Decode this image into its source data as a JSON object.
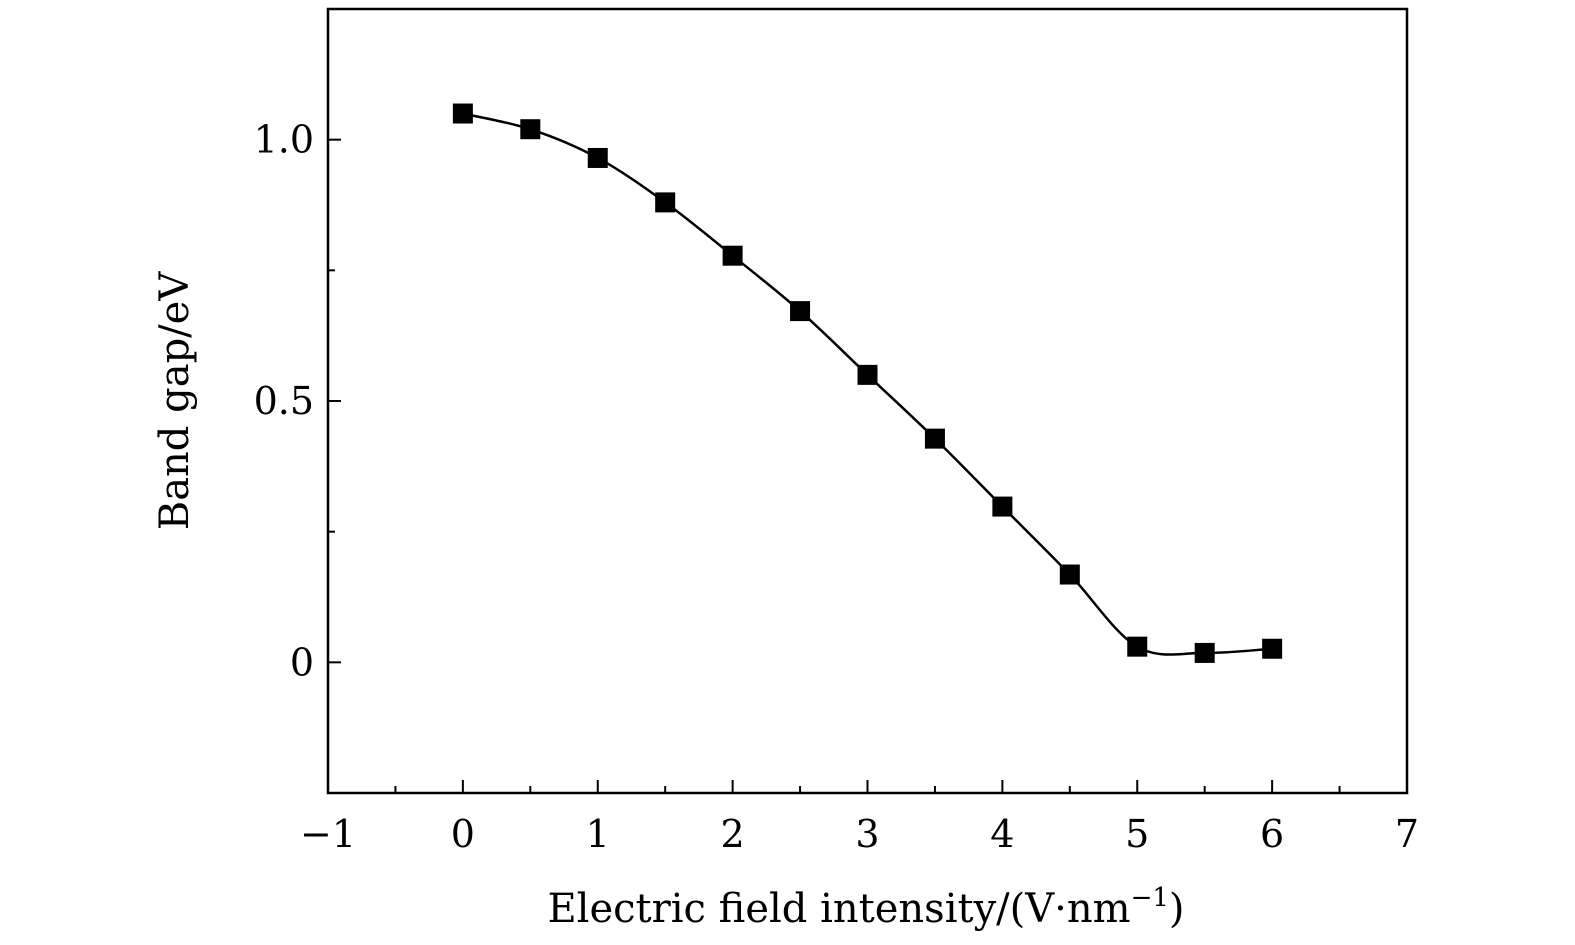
{
  "chart_data": {
    "type": "line",
    "title": "",
    "xlabel": "Electric field intensity/(V·nm",
    "xlabel_superscript": "−1",
    "xlabel_close": ")",
    "ylabel": "Band gap/eV",
    "xlim": [
      -1,
      7
    ],
    "ylim": [
      -0.25,
      1.25
    ],
    "x_ticks": [
      -1,
      0,
      1,
      2,
      3,
      4,
      5,
      6,
      7
    ],
    "x_tick_labels": [
      "−1",
      "0",
      "1",
      "2",
      "3",
      "4",
      "5",
      "6",
      "7"
    ],
    "x_minor_ticks": [
      -0.5,
      0.5,
      1.5,
      2.5,
      3.5,
      4.5,
      5.5,
      6.5
    ],
    "y_ticks": [
      0,
      0.5,
      1.0
    ],
    "y_tick_labels": [
      "0",
      "0.5",
      "1.0"
    ],
    "y_minor_ticks": [
      0.25,
      0.75
    ],
    "grid": false,
    "marker": "square",
    "color": "#000000",
    "series": [
      {
        "x": [
          0,
          0.5,
          1,
          1.5,
          2,
          2.5,
          3,
          3.5,
          4,
          4.5,
          5,
          5.5,
          6
        ],
        "values": [
          1.05,
          1.02,
          0.965,
          0.88,
          0.778,
          0.672,
          0.55,
          0.428,
          0.298,
          0.168,
          0.03,
          0.018,
          0.026
        ]
      }
    ]
  }
}
